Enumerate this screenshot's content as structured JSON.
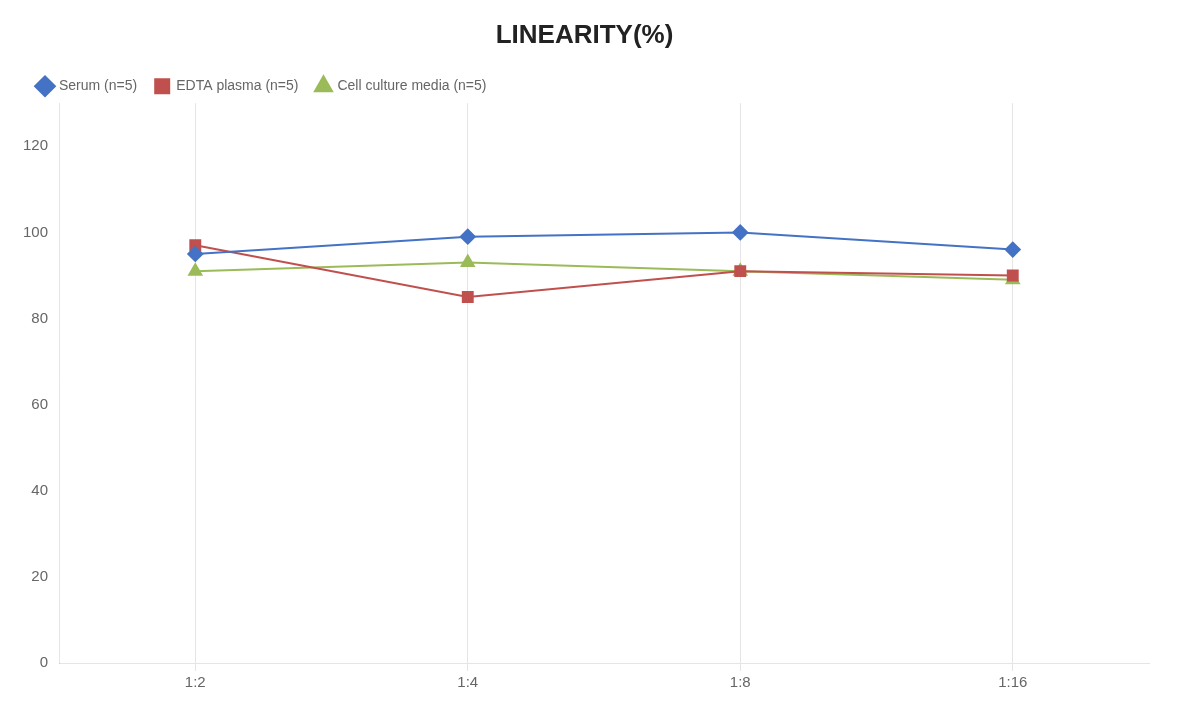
{
  "chart_data": {
    "type": "line",
    "title": "LINEARITY(%)",
    "categories": [
      "1:2",
      "1:4",
      "1:8",
      "1:16"
    ],
    "series": [
      {
        "name": "Serum (n=5)",
        "color": "#4472C4",
        "marker": "diamond",
        "values": [
          95,
          99,
          100,
          96
        ]
      },
      {
        "name": "EDTA plasma (n=5)",
        "color": "#C0504D",
        "marker": "square",
        "values": [
          97,
          85,
          91,
          90
        ]
      },
      {
        "name": "Cell culture media (n=5)",
        "color": "#9BBB59",
        "marker": "triangle",
        "values": [
          91,
          93,
          91,
          89
        ]
      }
    ],
    "ylim": [
      0,
      130
    ],
    "yticks": [
      0,
      20,
      40,
      60,
      80,
      100,
      120
    ],
    "grid": "x",
    "legend": "top"
  }
}
